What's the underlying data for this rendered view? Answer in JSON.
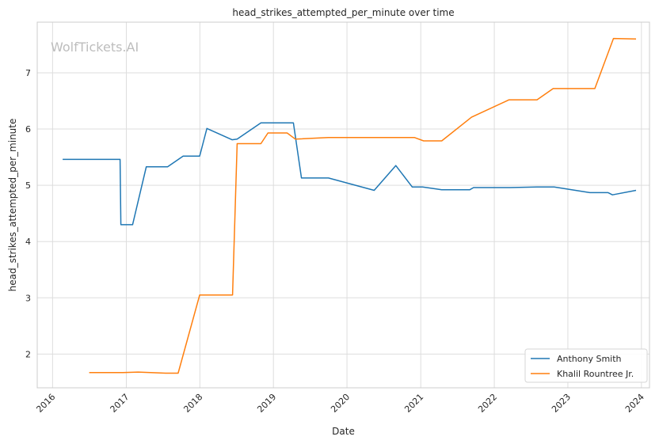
{
  "watermark": "WolfTickets.AI",
  "chart_data": {
    "type": "line",
    "title": "head_strikes_attempted_per_minute over time",
    "xlabel": "Date",
    "ylabel": "head_strikes_attempted_per_minute",
    "x_ticks": [
      "2016",
      "2017",
      "2018",
      "2019",
      "2020",
      "2021",
      "2022",
      "2023",
      "2024"
    ],
    "y_ticks": [
      2,
      3,
      4,
      5,
      6,
      7
    ],
    "xlim": [
      "2015-10-17",
      "2024-02-10"
    ],
    "ylim": [
      1.4,
      7.9
    ],
    "grid": true,
    "legend_position": "bottom-right",
    "series": [
      {
        "name": "Anthony Smith",
        "color": "#1f77b4",
        "points": [
          [
            "2016-02-20",
            5.46
          ],
          [
            "2016-12-01",
            5.46
          ],
          [
            "2016-12-05",
            4.3
          ],
          [
            "2017-02-01",
            4.3
          ],
          [
            "2017-04-10",
            5.33
          ],
          [
            "2017-07-25",
            5.33
          ],
          [
            "2017-10-10",
            5.52
          ],
          [
            "2017-12-31",
            5.52
          ],
          [
            "2018-02-05",
            6.01
          ],
          [
            "2018-06-10",
            5.81
          ],
          [
            "2018-07-05",
            5.82
          ],
          [
            "2018-10-31",
            6.11
          ],
          [
            "2019-04-10",
            6.11
          ],
          [
            "2019-05-20",
            5.13
          ],
          [
            "2019-10-01",
            5.13
          ],
          [
            "2020-05-15",
            4.91
          ],
          [
            "2020-08-30",
            5.35
          ],
          [
            "2020-11-20",
            4.97
          ],
          [
            "2021-01-10",
            4.97
          ],
          [
            "2021-04-15",
            4.92
          ],
          [
            "2021-09-01",
            4.92
          ],
          [
            "2021-09-20",
            4.96
          ],
          [
            "2022-03-20",
            4.96
          ],
          [
            "2022-08-01",
            4.97
          ],
          [
            "2022-10-25",
            4.97
          ],
          [
            "2023-04-20",
            4.87
          ],
          [
            "2023-07-20",
            4.87
          ],
          [
            "2023-08-10",
            4.83
          ],
          [
            "2023-12-05",
            4.91
          ]
        ]
      },
      {
        "name": "Khalil Rountree Jr.",
        "color": "#ff7f0e",
        "points": [
          [
            "2016-07-01",
            1.67
          ],
          [
            "2016-12-15",
            1.67
          ],
          [
            "2017-03-01",
            1.68
          ],
          [
            "2017-07-15",
            1.66
          ],
          [
            "2017-09-15",
            1.66
          ],
          [
            "2017-12-31",
            3.05
          ],
          [
            "2018-06-12",
            3.05
          ],
          [
            "2018-07-05",
            5.74
          ],
          [
            "2018-10-31",
            5.74
          ],
          [
            "2018-12-05",
            5.93
          ],
          [
            "2019-03-10",
            5.93
          ],
          [
            "2019-04-20",
            5.82
          ],
          [
            "2019-10-01",
            5.85
          ],
          [
            "2020-11-30",
            5.85
          ],
          [
            "2021-01-15",
            5.79
          ],
          [
            "2021-04-15",
            5.79
          ],
          [
            "2021-09-10",
            6.21
          ],
          [
            "2022-03-15",
            6.52
          ],
          [
            "2022-08-01",
            6.52
          ],
          [
            "2022-10-20",
            6.72
          ],
          [
            "2023-05-15",
            6.72
          ],
          [
            "2023-08-15",
            7.61
          ],
          [
            "2023-12-05",
            7.6
          ]
        ]
      }
    ]
  }
}
